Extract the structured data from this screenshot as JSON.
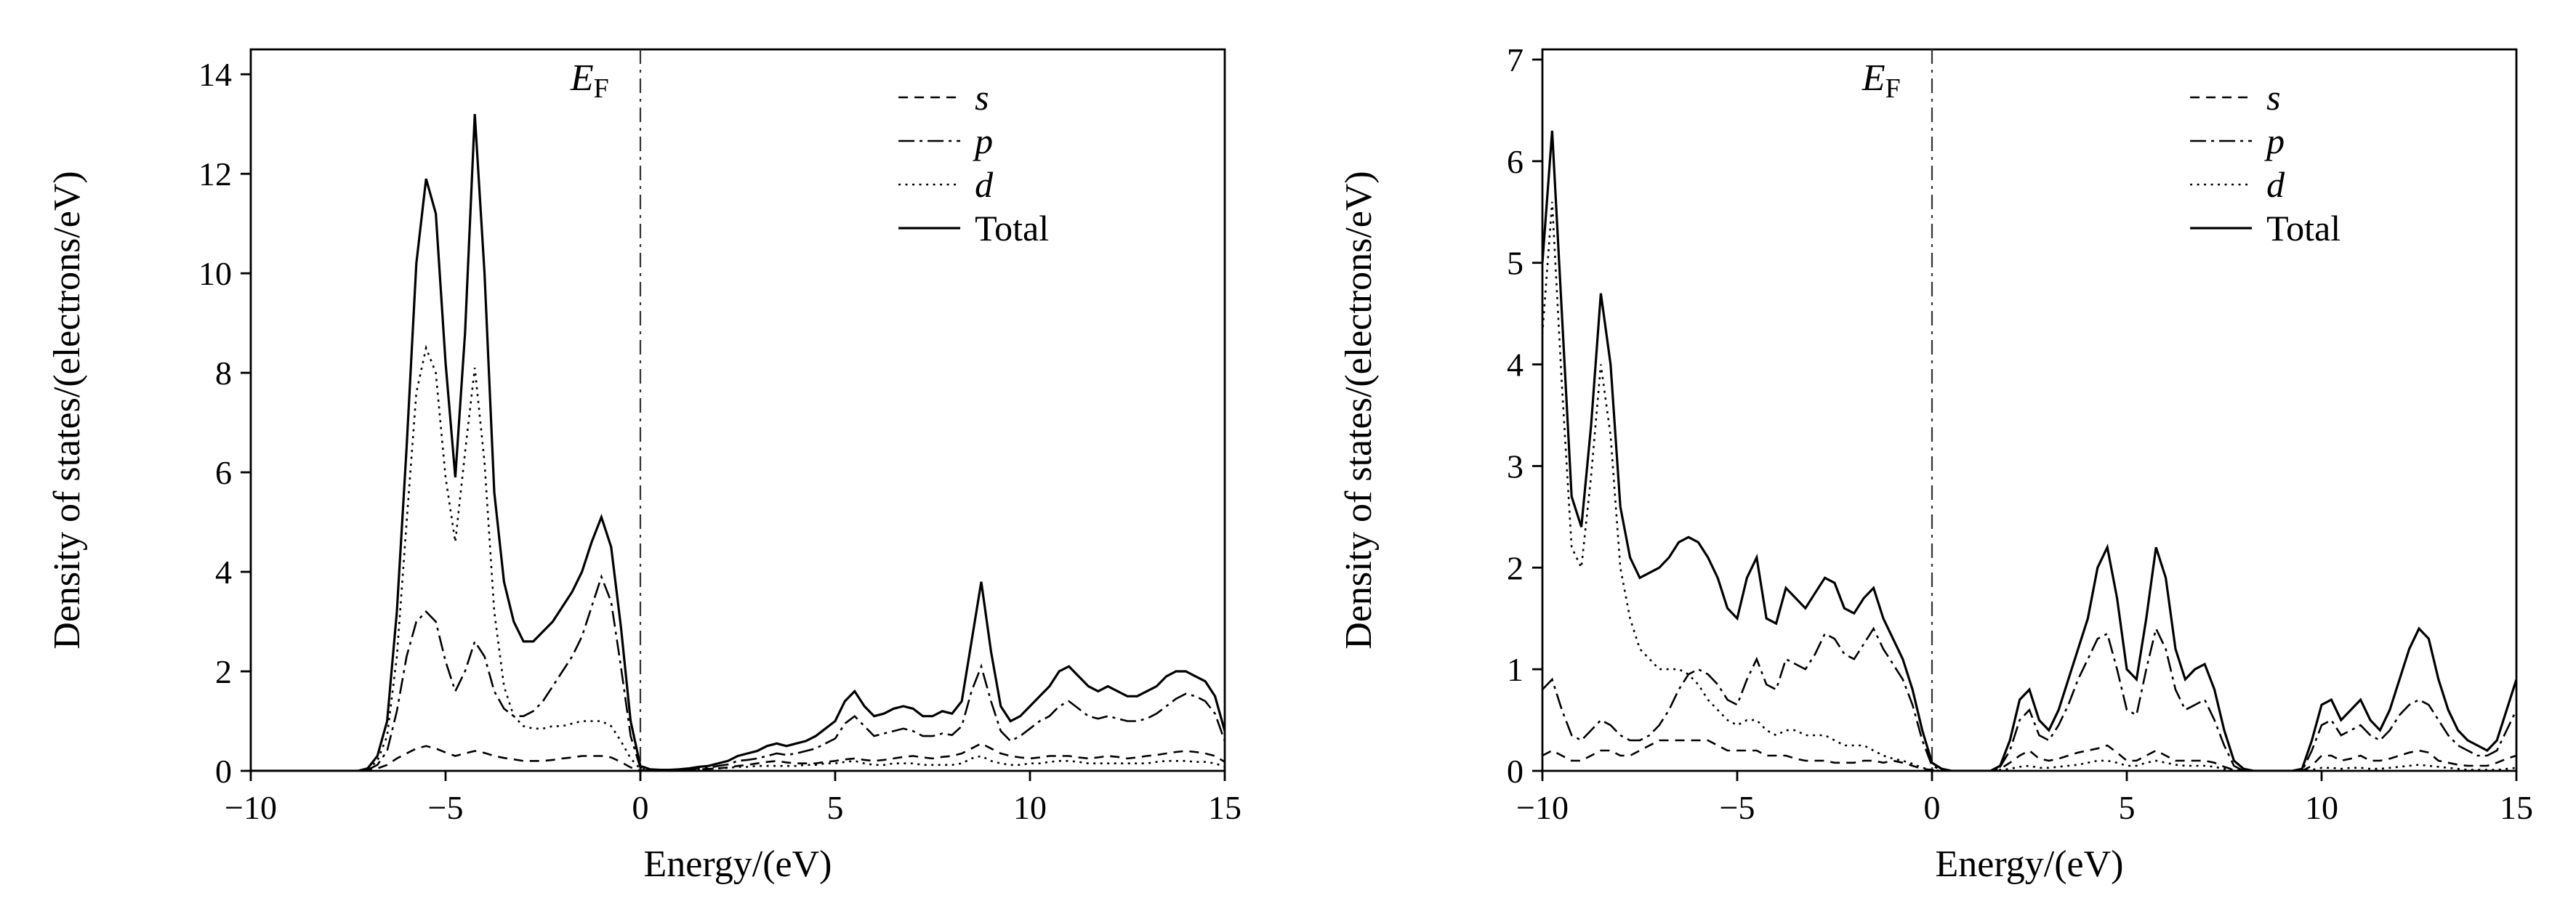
{
  "figure": {
    "background": "#ffffff",
    "line_color": "#000000",
    "fermi_line_color": "#333333"
  },
  "chart_data": [
    {
      "type": "line",
      "title": "",
      "xlabel": "Energy/(eV)",
      "ylabel": "Density of states/(electrons/eV)",
      "xlim": [
        -10,
        15
      ],
      "ylim": [
        0,
        14.5
      ],
      "grid": false,
      "legend_position": "upper right",
      "xtick_values": [
        -10,
        -5,
        0,
        5,
        10,
        15
      ],
      "xtick_labels": [
        "−10",
        "−5",
        "0",
        "5",
        "10",
        "15"
      ],
      "ytick_values": [
        0,
        2,
        4,
        6,
        8,
        10,
        12,
        14
      ],
      "ytick_labels": [
        "0",
        "2",
        "4",
        "6",
        "8",
        "10",
        "12",
        "14"
      ],
      "fermi": {
        "x": 0,
        "label_main": "E",
        "label_sub": "F",
        "label_x": -1.3
      },
      "x_start": -10,
      "x_step": 0.25,
      "series": [
        {
          "name": "s",
          "style": "dashed",
          "italic": true,
          "values": [
            0,
            0,
            0,
            0,
            0,
            0,
            0,
            0,
            0,
            0,
            0,
            0,
            0.01,
            0.05,
            0.12,
            0.25,
            0.35,
            0.45,
            0.5,
            0.45,
            0.37,
            0.3,
            0.35,
            0.4,
            0.36,
            0.3,
            0.26,
            0.23,
            0.2,
            0.2,
            0.2,
            0.22,
            0.25,
            0.27,
            0.3,
            0.3,
            0.3,
            0.27,
            0.18,
            0.07,
            0.01,
            0.01,
            0.01,
            0.01,
            0.01,
            0.02,
            0.03,
            0.04,
            0.05,
            0.07,
            0.1,
            0.12,
            0.15,
            0.18,
            0.2,
            0.17,
            0.15,
            0.15,
            0.15,
            0.18,
            0.2,
            0.23,
            0.25,
            0.22,
            0.2,
            0.22,
            0.25,
            0.28,
            0.3,
            0.27,
            0.25,
            0.28,
            0.3,
            0.35,
            0.45,
            0.55,
            0.45,
            0.35,
            0.3,
            0.27,
            0.25,
            0.27,
            0.3,
            0.3,
            0.3,
            0.27,
            0.25,
            0.27,
            0.3,
            0.28,
            0.25,
            0.27,
            0.3,
            0.32,
            0.35,
            0.38,
            0.4,
            0.38,
            0.35,
            0.3,
            0.18
          ]
        },
        {
          "name": "p",
          "style": "dashdot",
          "italic": true,
          "values": [
            0,
            0,
            0,
            0,
            0,
            0,
            0,
            0,
            0,
            0,
            0,
            0,
            0.02,
            0.12,
            0.4,
            1.2,
            2.3,
            3.0,
            3.2,
            3.0,
            2.2,
            1.6,
            2.0,
            2.6,
            2.3,
            1.6,
            1.25,
            1.1,
            1.1,
            1.2,
            1.4,
            1.7,
            2.0,
            2.3,
            2.7,
            3.3,
            3.9,
            3.4,
            2.1,
            0.7,
            0.06,
            0.02,
            0.01,
            0.01,
            0.02,
            0.03,
            0.05,
            0.06,
            0.1,
            0.13,
            0.2,
            0.22,
            0.25,
            0.3,
            0.35,
            0.32,
            0.35,
            0.4,
            0.45,
            0.55,
            0.65,
            0.95,
            1.1,
            0.9,
            0.7,
            0.75,
            0.8,
            0.85,
            0.8,
            0.7,
            0.7,
            0.75,
            0.72,
            0.9,
            1.6,
            2.1,
            1.4,
            0.8,
            0.6,
            0.7,
            0.85,
            1.0,
            1.1,
            1.3,
            1.4,
            1.25,
            1.1,
            1.05,
            1.1,
            1.05,
            1.0,
            1.0,
            1.05,
            1.15,
            1.3,
            1.45,
            1.55,
            1.5,
            1.4,
            1.15,
            0.6
          ]
        },
        {
          "name": "d",
          "style": "dotted",
          "italic": true,
          "values": [
            0,
            0,
            0,
            0,
            0,
            0,
            0,
            0,
            0,
            0,
            0,
            0,
            0.03,
            0.2,
            0.7,
            2.3,
            5.0,
            7.6,
            8.5,
            8.0,
            5.9,
            4.6,
            6.4,
            8.1,
            6.2,
            3.2,
            1.7,
            1.1,
            0.9,
            0.85,
            0.85,
            0.9,
            0.9,
            0.95,
            1.0,
            1.0,
            1.0,
            0.9,
            0.6,
            0.25,
            0.04,
            0.02,
            0.02,
            0.02,
            0.02,
            0.03,
            0.03,
            0.04,
            0.05,
            0.06,
            0.08,
            0.08,
            0.1,
            0.1,
            0.1,
            0.1,
            0.1,
            0.12,
            0.12,
            0.15,
            0.15,
            0.18,
            0.2,
            0.15,
            0.12,
            0.12,
            0.15,
            0.15,
            0.15,
            0.12,
            0.12,
            0.12,
            0.12,
            0.15,
            0.25,
            0.3,
            0.2,
            0.15,
            0.12,
            0.12,
            0.15,
            0.15,
            0.18,
            0.2,
            0.2,
            0.18,
            0.15,
            0.15,
            0.15,
            0.15,
            0.15,
            0.15,
            0.15,
            0.18,
            0.2,
            0.2,
            0.2,
            0.18,
            0.18,
            0.15,
            0.08
          ]
        },
        {
          "name": "Total",
          "style": "solid",
          "italic": false,
          "values": [
            0,
            0,
            0,
            0,
            0,
            0,
            0,
            0,
            0,
            0,
            0,
            0,
            0.05,
            0.3,
            1.0,
            3.2,
            6.5,
            10.2,
            11.9,
            11.2,
            8.2,
            5.9,
            8.8,
            13.2,
            10.0,
            5.6,
            3.8,
            3.0,
            2.6,
            2.6,
            2.8,
            3.0,
            3.3,
            3.6,
            4.0,
            4.6,
            5.1,
            4.5,
            2.9,
            1.0,
            0.1,
            0.03,
            0.02,
            0.02,
            0.03,
            0.05,
            0.08,
            0.1,
            0.15,
            0.2,
            0.3,
            0.35,
            0.4,
            0.5,
            0.55,
            0.5,
            0.55,
            0.6,
            0.7,
            0.85,
            1.0,
            1.4,
            1.6,
            1.3,
            1.1,
            1.15,
            1.25,
            1.3,
            1.25,
            1.1,
            1.1,
            1.2,
            1.15,
            1.4,
            2.6,
            3.8,
            2.4,
            1.3,
            1.0,
            1.1,
            1.3,
            1.5,
            1.7,
            2.0,
            2.1,
            1.9,
            1.7,
            1.6,
            1.7,
            1.6,
            1.5,
            1.5,
            1.6,
            1.7,
            1.9,
            2.0,
            2.0,
            1.9,
            1.8,
            1.5,
            0.8
          ]
        }
      ]
    },
    {
      "type": "line",
      "title": "",
      "xlabel": "Energy/(eV)",
      "ylabel": "Density of states/(electrons/eV)",
      "xlim": [
        -10,
        15
      ],
      "ylim": [
        0,
        7.1
      ],
      "grid": false,
      "legend_position": "upper right",
      "xtick_values": [
        -10,
        -5,
        0,
        5,
        10,
        15
      ],
      "xtick_labels": [
        "−10",
        "−5",
        "0",
        "5",
        "10",
        "15"
      ],
      "ytick_values": [
        0,
        1,
        2,
        3,
        4,
        5,
        6,
        7
      ],
      "ytick_labels": [
        "0",
        "1",
        "2",
        "3",
        "4",
        "5",
        "6",
        "7"
      ],
      "fermi": {
        "x": 0,
        "label_main": "E",
        "label_sub": "F",
        "label_x": -1.3
      },
      "x_start": -10,
      "x_step": 0.25,
      "series": [
        {
          "name": "s",
          "style": "dashed",
          "italic": true,
          "values": [
            0.15,
            0.2,
            0.15,
            0.1,
            0.1,
            0.15,
            0.2,
            0.2,
            0.15,
            0.15,
            0.2,
            0.25,
            0.3,
            0.3,
            0.3,
            0.3,
            0.3,
            0.3,
            0.25,
            0.2,
            0.2,
            0.2,
            0.2,
            0.15,
            0.15,
            0.15,
            0.12,
            0.1,
            0.1,
            0.1,
            0.08,
            0.08,
            0.08,
            0.1,
            0.1,
            0.08,
            0.1,
            0.08,
            0.05,
            0.02,
            0.01,
            0,
            0,
            0,
            0,
            0,
            0,
            0.02,
            0.08,
            0.15,
            0.2,
            0.12,
            0.1,
            0.12,
            0.15,
            0.18,
            0.2,
            0.22,
            0.25,
            0.18,
            0.1,
            0.1,
            0.15,
            0.2,
            0.15,
            0.1,
            0.1,
            0.1,
            0.1,
            0.08,
            0.04,
            0.01,
            0,
            0,
            0,
            0,
            0,
            0,
            0,
            0.05,
            0.15,
            0.15,
            0.1,
            0.12,
            0.15,
            0.1,
            0.1,
            0.12,
            0.15,
            0.18,
            0.2,
            0.18,
            0.1,
            0.08,
            0.06,
            0.05,
            0.05,
            0.05,
            0.08,
            0.12,
            0.15
          ]
        },
        {
          "name": "p",
          "style": "dashdot",
          "italic": true,
          "values": [
            0.8,
            0.9,
            0.6,
            0.35,
            0.3,
            0.4,
            0.5,
            0.45,
            0.35,
            0.3,
            0.3,
            0.35,
            0.45,
            0.6,
            0.8,
            0.95,
            1.0,
            0.95,
            0.85,
            0.7,
            0.65,
            0.9,
            1.1,
            0.85,
            0.8,
            1.1,
            1.05,
            1.0,
            1.15,
            1.35,
            1.3,
            1.15,
            1.1,
            1.25,
            1.4,
            1.2,
            1.05,
            0.9,
            0.65,
            0.3,
            0.05,
            0.01,
            0,
            0,
            0,
            0,
            0,
            0.04,
            0.2,
            0.5,
            0.6,
            0.35,
            0.3,
            0.45,
            0.65,
            0.9,
            1.1,
            1.3,
            1.35,
            1.0,
            0.6,
            0.55,
            1.0,
            1.4,
            1.2,
            0.8,
            0.6,
            0.65,
            0.7,
            0.5,
            0.25,
            0.05,
            0,
            0,
            0,
            0,
            0,
            0,
            0,
            0.2,
            0.45,
            0.5,
            0.35,
            0.4,
            0.45,
            0.35,
            0.3,
            0.4,
            0.55,
            0.65,
            0.7,
            0.65,
            0.5,
            0.35,
            0.25,
            0.2,
            0.15,
            0.15,
            0.2,
            0.4,
            0.6
          ]
        },
        {
          "name": "d",
          "style": "dotted",
          "italic": true,
          "values": [
            4.3,
            5.6,
            3.8,
            2.2,
            2.0,
            2.9,
            4.0,
            3.3,
            2.0,
            1.5,
            1.2,
            1.1,
            1.0,
            1.0,
            1.0,
            0.95,
            0.85,
            0.7,
            0.6,
            0.5,
            0.45,
            0.5,
            0.5,
            0.4,
            0.35,
            0.4,
            0.4,
            0.35,
            0.35,
            0.35,
            0.3,
            0.25,
            0.25,
            0.25,
            0.2,
            0.15,
            0.12,
            0.1,
            0.07,
            0.03,
            0.01,
            0,
            0,
            0,
            0,
            0,
            0,
            0.01,
            0.02,
            0.04,
            0.05,
            0.03,
            0.03,
            0.04,
            0.05,
            0.06,
            0.08,
            0.1,
            0.1,
            0.08,
            0.05,
            0.05,
            0.08,
            0.1,
            0.08,
            0.06,
            0.05,
            0.05,
            0.05,
            0.04,
            0.02,
            0.01,
            0,
            0,
            0,
            0,
            0,
            0,
            0,
            0.01,
            0.03,
            0.03,
            0.02,
            0.03,
            0.03,
            0.02,
            0.02,
            0.03,
            0.04,
            0.05,
            0.06,
            0.05,
            0.04,
            0.03,
            0.02,
            0.01,
            0.01,
            0.01,
            0.01,
            0.02,
            0.03
          ]
        },
        {
          "name": "Total",
          "style": "solid",
          "italic": false,
          "values": [
            5.0,
            6.3,
            4.5,
            2.7,
            2.4,
            3.4,
            4.7,
            4.0,
            2.6,
            2.1,
            1.9,
            1.95,
            2.0,
            2.1,
            2.25,
            2.3,
            2.25,
            2.1,
            1.9,
            1.6,
            1.5,
            1.9,
            2.1,
            1.5,
            1.45,
            1.8,
            1.7,
            1.6,
            1.75,
            1.9,
            1.85,
            1.6,
            1.55,
            1.7,
            1.8,
            1.5,
            1.3,
            1.1,
            0.8,
            0.4,
            0.08,
            0.02,
            0,
            0,
            0,
            0,
            0,
            0.05,
            0.3,
            0.7,
            0.8,
            0.5,
            0.4,
            0.6,
            0.9,
            1.2,
            1.5,
            2.0,
            2.2,
            1.7,
            1.0,
            0.9,
            1.5,
            2.2,
            1.9,
            1.2,
            0.9,
            1.0,
            1.05,
            0.8,
            0.4,
            0.1,
            0.02,
            0,
            0,
            0,
            0,
            0,
            0.02,
            0.3,
            0.65,
            0.7,
            0.5,
            0.6,
            0.7,
            0.5,
            0.4,
            0.6,
            0.9,
            1.2,
            1.4,
            1.3,
            0.9,
            0.6,
            0.4,
            0.3,
            0.25,
            0.2,
            0.3,
            0.6,
            0.9
          ]
        }
      ]
    }
  ]
}
